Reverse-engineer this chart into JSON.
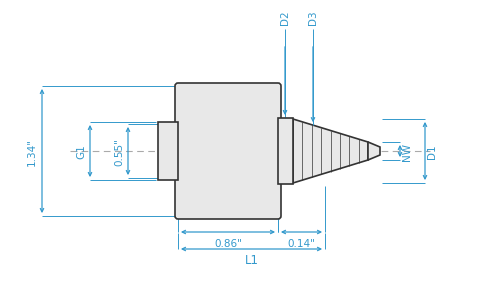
{
  "bg_color": "#ffffff",
  "line_color": "#333333",
  "dim_color": "#3399cc",
  "part_fill": "#e8e8e8",
  "part_stroke": "#333333",
  "centerline_color": "#aaaaaa",
  "labels": {
    "G1": "G1",
    "dim_134": "1.34\"",
    "dim_055": "0.55\"",
    "dim_086": "0.86\"",
    "dim_014": "0.14\"",
    "L1": "L1",
    "D2": "D2",
    "D3": "D3",
    "NW": "NW",
    "D1": "D1"
  }
}
